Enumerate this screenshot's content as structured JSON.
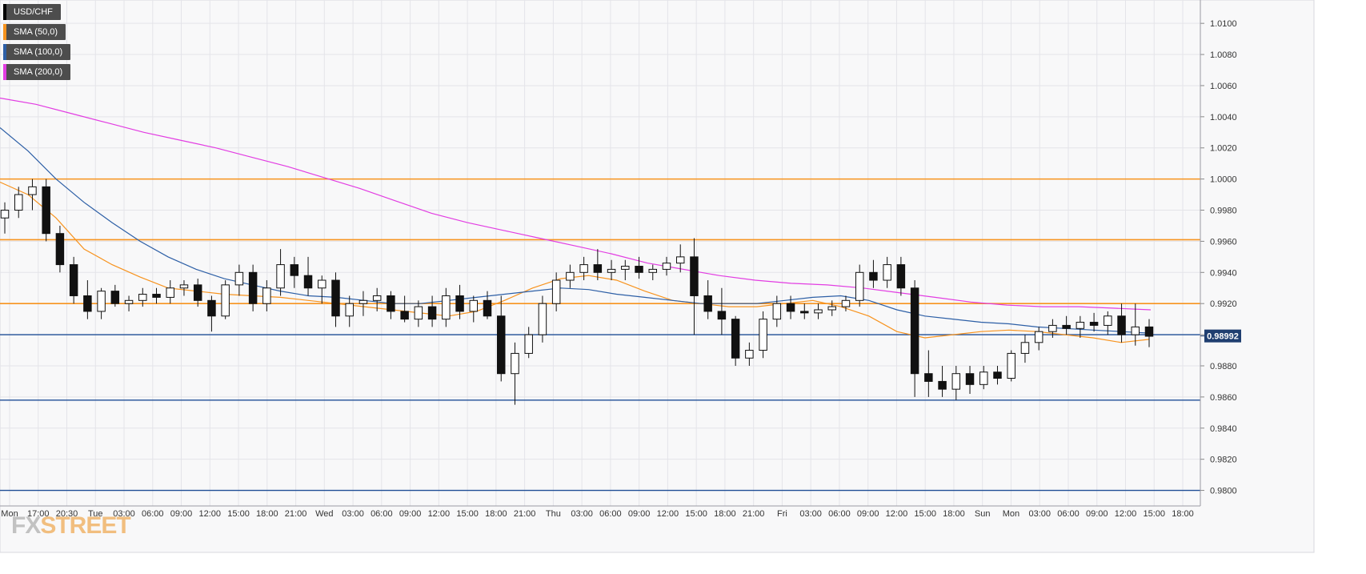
{
  "legend": [
    {
      "label": "USD/CHF",
      "color": "#000000"
    },
    {
      "label": "SMA (50,0)",
      "color": "#f7931e"
    },
    {
      "label": "SMA (100,0)",
      "color": "#2d5fa6"
    },
    {
      "label": "SMA (200,0)",
      "color": "#e23de2"
    }
  ],
  "logo": {
    "fx": "FX",
    "street": "STREET"
  },
  "colors": {
    "background": "#f8f8f9",
    "grid": "#e4e4e9",
    "resistance": "#f7931e",
    "support": "#1f4e96",
    "sma50": "#f7931e",
    "sma100": "#2d5fa6",
    "sma200": "#e23de2",
    "price_tag": "#1f3e70"
  },
  "chart_data": {
    "type": "line",
    "title": "",
    "symbol": "USD/CHF",
    "xlabel": "",
    "ylabel": "",
    "ylim": [
      0.979,
      1.0115
    ],
    "y_ticks": [
      "1.0100",
      "1.0080",
      "1.0060",
      "1.0040",
      "1.0020",
      "1.0000",
      "0.9980",
      "0.9960",
      "0.9940",
      "0.9920",
      "0.9900",
      "0.9880",
      "0.9860",
      "0.9840",
      "0.9820",
      "0.9800"
    ],
    "y_tick_values": [
      1.01,
      1.008,
      1.006,
      1.004,
      1.002,
      1.0,
      0.998,
      0.996,
      0.994,
      0.992,
      0.99,
      0.988,
      0.986,
      0.984,
      0.982,
      0.98
    ],
    "x_ticks": [
      "Mon",
      "17:00",
      "20:30",
      "Tue",
      "03:00",
      "06:00",
      "09:00",
      "12:00",
      "15:00",
      "18:00",
      "21:00",
      "Wed",
      "03:00",
      "06:00",
      "09:00",
      "12:00",
      "15:00",
      "18:00",
      "21:00",
      "Thu",
      "03:00",
      "06:00",
      "09:00",
      "12:00",
      "15:00",
      "18:00",
      "21:00",
      "Fri",
      "03:00",
      "06:00",
      "09:00",
      "12:00",
      "15:00",
      "18:00",
      "Sun",
      "Mon",
      "03:00",
      "06:00",
      "09:00",
      "12:00",
      "15:00",
      "18:00"
    ],
    "current_price": "0.98992",
    "current_value": 0.98992,
    "resistance_levels": [
      1.0,
      0.9961,
      0.992
    ],
    "support_levels": [
      0.99,
      0.9858,
      0.98
    ],
    "candles": [
      [
        0.9975,
        0.9985,
        0.9965,
        0.998
      ],
      [
        0.998,
        0.9995,
        0.9975,
        0.999
      ],
      [
        0.999,
        1.0,
        0.998,
        0.9995
      ],
      [
        0.9995,
        1.0,
        0.996,
        0.9965
      ],
      [
        0.9965,
        0.997,
        0.994,
        0.9945
      ],
      [
        0.9945,
        0.995,
        0.992,
        0.9925
      ],
      [
        0.9925,
        0.9935,
        0.991,
        0.9915
      ],
      [
        0.9915,
        0.993,
        0.991,
        0.9928
      ],
      [
        0.9928,
        0.9932,
        0.9918,
        0.992
      ],
      [
        0.992,
        0.9925,
        0.9915,
        0.9922
      ],
      [
        0.9922,
        0.993,
        0.9918,
        0.9926
      ],
      [
        0.9926,
        0.993,
        0.992,
        0.9924
      ],
      [
        0.9924,
        0.9935,
        0.992,
        0.993
      ],
      [
        0.993,
        0.9935,
        0.9925,
        0.9932
      ],
      [
        0.9932,
        0.9936,
        0.9918,
        0.9922
      ],
      [
        0.9922,
        0.9925,
        0.9902,
        0.9912
      ],
      [
        0.9912,
        0.9935,
        0.991,
        0.9932
      ],
      [
        0.9932,
        0.9945,
        0.9925,
        0.994
      ],
      [
        0.994,
        0.9945,
        0.9915,
        0.992
      ],
      [
        0.992,
        0.9935,
        0.9915,
        0.993
      ],
      [
        0.993,
        0.9955,
        0.9925,
        0.9945
      ],
      [
        0.9945,
        0.995,
        0.993,
        0.9938
      ],
      [
        0.9938,
        0.995,
        0.9925,
        0.993
      ],
      [
        0.993,
        0.9938,
        0.992,
        0.9935
      ],
      [
        0.9935,
        0.994,
        0.9905,
        0.9912
      ],
      [
        0.9912,
        0.9925,
        0.9905,
        0.992
      ],
      [
        0.992,
        0.9928,
        0.9912,
        0.9922
      ],
      [
        0.9922,
        0.993,
        0.9915,
        0.9925
      ],
      [
        0.9925,
        0.9928,
        0.991,
        0.9915
      ],
      [
        0.9915,
        0.9925,
        0.9908,
        0.991
      ],
      [
        0.991,
        0.9922,
        0.9905,
        0.9918
      ],
      [
        0.9918,
        0.9925,
        0.9905,
        0.991
      ],
      [
        0.991,
        0.993,
        0.9905,
        0.9925
      ],
      [
        0.9925,
        0.9932,
        0.991,
        0.9915
      ],
      [
        0.9915,
        0.9925,
        0.9908,
        0.9922
      ],
      [
        0.9922,
        0.9928,
        0.991,
        0.9912
      ],
      [
        0.9912,
        0.9925,
        0.987,
        0.9875
      ],
      [
        0.9875,
        0.9895,
        0.9855,
        0.9888
      ],
      [
        0.9888,
        0.9905,
        0.9885,
        0.99
      ],
      [
        0.99,
        0.9925,
        0.9895,
        0.992
      ],
      [
        0.992,
        0.994,
        0.9915,
        0.9935
      ],
      [
        0.9935,
        0.9945,
        0.993,
        0.994
      ],
      [
        0.994,
        0.995,
        0.9935,
        0.9945
      ],
      [
        0.9945,
        0.9955,
        0.9935,
        0.994
      ],
      [
        0.994,
        0.9948,
        0.9935,
        0.9942
      ],
      [
        0.9942,
        0.9948,
        0.9935,
        0.9944
      ],
      [
        0.9944,
        0.995,
        0.9936,
        0.994
      ],
      [
        0.994,
        0.9945,
        0.9935,
        0.9942
      ],
      [
        0.9942,
        0.995,
        0.9938,
        0.9946
      ],
      [
        0.9946,
        0.9958,
        0.994,
        0.995
      ],
      [
        0.995,
        0.9962,
        0.99,
        0.9925
      ],
      [
        0.9925,
        0.9935,
        0.991,
        0.9915
      ],
      [
        0.9915,
        0.993,
        0.99,
        0.991
      ],
      [
        0.991,
        0.9912,
        0.988,
        0.9885
      ],
      [
        0.9885,
        0.9895,
        0.988,
        0.989
      ],
      [
        0.989,
        0.9915,
        0.9885,
        0.991
      ],
      [
        0.991,
        0.9925,
        0.9905,
        0.992
      ],
      [
        0.992,
        0.9925,
        0.991,
        0.9915
      ],
      [
        0.9915,
        0.992,
        0.991,
        0.9914
      ],
      [
        0.9914,
        0.992,
        0.991,
        0.9916
      ],
      [
        0.9916,
        0.9922,
        0.9912,
        0.9918
      ],
      [
        0.9918,
        0.9925,
        0.9915,
        0.9922
      ],
      [
        0.9922,
        0.9945,
        0.9918,
        0.994
      ],
      [
        0.994,
        0.9948,
        0.993,
        0.9935
      ],
      [
        0.9935,
        0.995,
        0.993,
        0.9945
      ],
      [
        0.9945,
        0.995,
        0.9925,
        0.993
      ],
      [
        0.993,
        0.9935,
        0.986,
        0.9875
      ],
      [
        0.9875,
        0.989,
        0.986,
        0.987
      ],
      [
        0.987,
        0.988,
        0.986,
        0.9865
      ],
      [
        0.9865,
        0.988,
        0.9858,
        0.9875
      ],
      [
        0.9875,
        0.988,
        0.9862,
        0.9868
      ],
      [
        0.9868,
        0.988,
        0.9865,
        0.9876
      ],
      [
        0.9876,
        0.988,
        0.9868,
        0.9872
      ],
      [
        0.9872,
        0.989,
        0.987,
        0.9888
      ],
      [
        0.9888,
        0.99,
        0.9882,
        0.9895
      ],
      [
        0.9895,
        0.9905,
        0.989,
        0.9902
      ],
      [
        0.9902,
        0.991,
        0.9898,
        0.9906
      ],
      [
        0.9906,
        0.9912,
        0.99,
        0.9904
      ],
      [
        0.9904,
        0.9912,
        0.9898,
        0.9908
      ],
      [
        0.9908,
        0.9914,
        0.9902,
        0.9906
      ],
      [
        0.9906,
        0.9915,
        0.99,
        0.9912
      ],
      [
        0.9912,
        0.992,
        0.9895,
        0.99
      ],
      [
        0.99,
        0.992,
        0.9893,
        0.9905
      ],
      [
        0.9905,
        0.991,
        0.9892,
        0.9899
      ]
    ],
    "series": [
      {
        "name": "SMA (50,0)",
        "values": [
          0.9998,
          0.999,
          0.9975,
          0.9955,
          0.9945,
          0.9937,
          0.993,
          0.9928,
          0.9926,
          0.9925,
          0.9924,
          0.9922,
          0.992,
          0.9918,
          0.9916,
          0.9914,
          0.9912,
          0.9915,
          0.9922,
          0.993,
          0.9936,
          0.9938,
          0.9935,
          0.9928,
          0.9922,
          0.992,
          0.9918,
          0.9918,
          0.992,
          0.9922,
          0.9918,
          0.9912,
          0.9902,
          0.9898,
          0.99,
          0.9902,
          0.9903,
          0.9902,
          0.99,
          0.9898,
          0.9895,
          0.9897
        ]
      },
      {
        "name": "SMA (100,0)",
        "values": [
          1.0033,
          1.0018,
          1.0,
          0.9985,
          0.9972,
          0.996,
          0.995,
          0.9942,
          0.9936,
          0.9932,
          0.9928,
          0.9925,
          0.9924,
          0.9922,
          0.992,
          0.992,
          0.9922,
          0.9924,
          0.9926,
          0.9928,
          0.993,
          0.9929,
          0.9926,
          0.9924,
          0.9922,
          0.992,
          0.992,
          0.992,
          0.9922,
          0.9924,
          0.9925,
          0.9922,
          0.9916,
          0.9912,
          0.991,
          0.9908,
          0.9907,
          0.9905,
          0.9904,
          0.9903,
          0.9902,
          0.9901
        ]
      },
      {
        "name": "SMA (200,0)",
        "values": [
          1.0052,
          1.0048,
          1.0042,
          1.0036,
          1.003,
          1.0025,
          1.002,
          1.0014,
          1.0008,
          1.0001,
          0.9994,
          0.9986,
          0.9978,
          0.9972,
          0.9967,
          0.9962,
          0.9957,
          0.9952,
          0.9946,
          0.9942,
          0.9938,
          0.9935,
          0.9933,
          0.9932,
          0.993,
          0.9927,
          0.9924,
          0.9921,
          0.9919,
          0.9918,
          0.9918,
          0.9917,
          0.9916
        ]
      }
    ]
  }
}
